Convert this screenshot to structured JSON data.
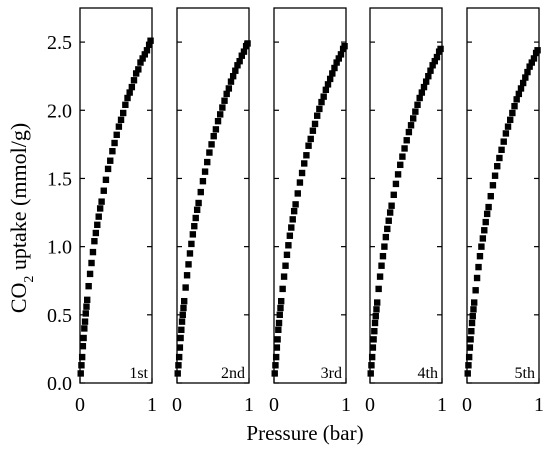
{
  "chart_data": {
    "type": "scatter",
    "ylabel_main": "CO",
    "ylabel_sub": "2",
    "ylabel_rest": " uptake (mmol/g)",
    "xlabel": "Pressure (bar)",
    "ylim": [
      0,
      2.75
    ],
    "xlim": [
      0,
      1
    ],
    "yticks": [
      "0.0",
      "0.5",
      "1.0",
      "1.5",
      "2.0",
      "2.5"
    ],
    "xticks": [
      "0",
      "1"
    ],
    "grid": false,
    "marker_color": "#000000",
    "panels": [
      {
        "label": "1st",
        "x": [
          0.01,
          0.02,
          0.03,
          0.04,
          0.05,
          0.06,
          0.07,
          0.08,
          0.09,
          0.1,
          0.12,
          0.14,
          0.16,
          0.18,
          0.2,
          0.22,
          0.24,
          0.26,
          0.28,
          0.3,
          0.33,
          0.36,
          0.39,
          0.42,
          0.45,
          0.48,
          0.51,
          0.54,
          0.57,
          0.6,
          0.63,
          0.66,
          0.69,
          0.72,
          0.75,
          0.78,
          0.81,
          0.84,
          0.87,
          0.9,
          0.93,
          0.96,
          0.98
        ],
        "y": [
          0.07,
          0.13,
          0.19,
          0.27,
          0.33,
          0.4,
          0.45,
          0.51,
          0.56,
          0.61,
          0.71,
          0.8,
          0.88,
          0.96,
          1.04,
          1.1,
          1.16,
          1.22,
          1.28,
          1.33,
          1.41,
          1.49,
          1.57,
          1.63,
          1.7,
          1.76,
          1.82,
          1.88,
          1.93,
          1.98,
          2.04,
          2.09,
          2.13,
          2.17,
          2.22,
          2.27,
          2.3,
          2.35,
          2.38,
          2.41,
          2.44,
          2.48,
          2.51
        ]
      },
      {
        "label": "2nd",
        "x": [
          0.01,
          0.02,
          0.03,
          0.04,
          0.05,
          0.06,
          0.07,
          0.08,
          0.09,
          0.1,
          0.12,
          0.14,
          0.16,
          0.18,
          0.2,
          0.22,
          0.24,
          0.26,
          0.28,
          0.3,
          0.33,
          0.36,
          0.39,
          0.42,
          0.45,
          0.48,
          0.51,
          0.54,
          0.57,
          0.6,
          0.63,
          0.66,
          0.69,
          0.72,
          0.75,
          0.78,
          0.81,
          0.84,
          0.87,
          0.9,
          0.93,
          0.96,
          0.98
        ],
        "y": [
          0.07,
          0.13,
          0.19,
          0.26,
          0.33,
          0.39,
          0.45,
          0.5,
          0.55,
          0.6,
          0.7,
          0.79,
          0.87,
          0.95,
          1.02,
          1.09,
          1.15,
          1.21,
          1.27,
          1.32,
          1.4,
          1.48,
          1.55,
          1.62,
          1.69,
          1.75,
          1.81,
          1.86,
          1.92,
          1.97,
          2.02,
          2.07,
          2.12,
          2.16,
          2.21,
          2.25,
          2.29,
          2.33,
          2.36,
          2.4,
          2.43,
          2.47,
          2.49
        ]
      },
      {
        "label": "3rd",
        "x": [
          0.01,
          0.02,
          0.03,
          0.04,
          0.05,
          0.06,
          0.07,
          0.08,
          0.09,
          0.1,
          0.12,
          0.14,
          0.16,
          0.18,
          0.2,
          0.22,
          0.24,
          0.26,
          0.28,
          0.3,
          0.33,
          0.36,
          0.39,
          0.42,
          0.45,
          0.48,
          0.51,
          0.54,
          0.57,
          0.6,
          0.63,
          0.66,
          0.69,
          0.72,
          0.75,
          0.78,
          0.81,
          0.84,
          0.87,
          0.9,
          0.93,
          0.96,
          0.98
        ],
        "y": [
          0.07,
          0.13,
          0.19,
          0.26,
          0.32,
          0.39,
          0.44,
          0.5,
          0.55,
          0.6,
          0.69,
          0.78,
          0.86,
          0.94,
          1.01,
          1.08,
          1.14,
          1.2,
          1.26,
          1.31,
          1.39,
          1.47,
          1.54,
          1.61,
          1.67,
          1.74,
          1.79,
          1.85,
          1.9,
          1.96,
          2.01,
          2.06,
          2.1,
          2.15,
          2.19,
          2.23,
          2.27,
          2.31,
          2.35,
          2.38,
          2.41,
          2.45,
          2.47
        ]
      },
      {
        "label": "4th",
        "x": [
          0.01,
          0.02,
          0.03,
          0.04,
          0.05,
          0.06,
          0.07,
          0.08,
          0.09,
          0.1,
          0.12,
          0.14,
          0.16,
          0.18,
          0.2,
          0.22,
          0.24,
          0.26,
          0.28,
          0.3,
          0.33,
          0.36,
          0.39,
          0.42,
          0.45,
          0.48,
          0.51,
          0.54,
          0.57,
          0.6,
          0.63,
          0.66,
          0.69,
          0.72,
          0.75,
          0.78,
          0.81,
          0.84,
          0.87,
          0.9,
          0.93,
          0.96,
          0.98
        ],
        "y": [
          0.07,
          0.13,
          0.19,
          0.26,
          0.32,
          0.38,
          0.44,
          0.49,
          0.54,
          0.59,
          0.69,
          0.78,
          0.86,
          0.93,
          1.0,
          1.07,
          1.13,
          1.19,
          1.25,
          1.3,
          1.38,
          1.46,
          1.53,
          1.6,
          1.66,
          1.72,
          1.78,
          1.84,
          1.89,
          1.94,
          1.99,
          2.04,
          2.09,
          2.13,
          2.17,
          2.21,
          2.25,
          2.29,
          2.33,
          2.36,
          2.39,
          2.43,
          2.45
        ]
      },
      {
        "label": "5th",
        "x": [
          0.01,
          0.02,
          0.03,
          0.04,
          0.05,
          0.06,
          0.07,
          0.08,
          0.09,
          0.1,
          0.12,
          0.14,
          0.16,
          0.18,
          0.2,
          0.22,
          0.24,
          0.26,
          0.28,
          0.3,
          0.33,
          0.36,
          0.39,
          0.42,
          0.45,
          0.48,
          0.51,
          0.54,
          0.57,
          0.6,
          0.63,
          0.66,
          0.69,
          0.72,
          0.75,
          0.78,
          0.81,
          0.84,
          0.87,
          0.9,
          0.93,
          0.96,
          0.98
        ],
        "y": [
          0.07,
          0.13,
          0.19,
          0.26,
          0.32,
          0.38,
          0.44,
          0.49,
          0.54,
          0.59,
          0.68,
          0.77,
          0.85,
          0.93,
          1.0,
          1.06,
          1.12,
          1.18,
          1.24,
          1.29,
          1.37,
          1.45,
          1.52,
          1.59,
          1.65,
          1.71,
          1.77,
          1.83,
          1.88,
          1.93,
          1.98,
          2.03,
          2.08,
          2.12,
          2.16,
          2.2,
          2.24,
          2.28,
          2.32,
          2.35,
          2.38,
          2.42,
          2.44
        ]
      }
    ]
  }
}
